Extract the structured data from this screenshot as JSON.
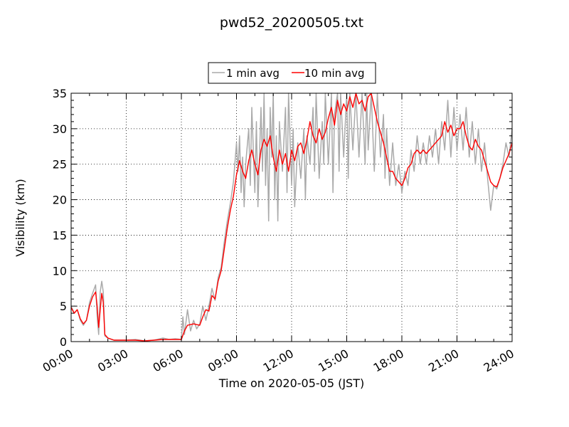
{
  "chart_data": {
    "type": "line",
    "title": "pwd52_20200505.txt",
    "xlabel": "Time on 2020-05-05 (JST)",
    "ylabel": "Visibility (km)",
    "xlim": [
      "00:00",
      "24:00"
    ],
    "ylim": [
      0,
      35
    ],
    "x_ticks": [
      "00:00",
      "03:00",
      "06:00",
      "09:00",
      "12:00",
      "15:00",
      "18:00",
      "21:00",
      "24:00"
    ],
    "y_ticks": [
      "0",
      "5",
      "10",
      "15",
      "20",
      "25",
      "30",
      "35"
    ],
    "grid": true,
    "legend": {
      "placement": "top-center",
      "outside": true
    },
    "series": [
      {
        "name": "1 min avg",
        "color": "#aaaaaa",
        "points": [
          [
            "00:00",
            5.0
          ],
          [
            "00:10",
            4.0
          ],
          [
            "00:20",
            4.5
          ],
          [
            "00:30",
            3.0
          ],
          [
            "00:40",
            2.3
          ],
          [
            "00:50",
            3.0
          ],
          [
            "01:00",
            5.5
          ],
          [
            "01:10",
            6.8
          ],
          [
            "01:20",
            8.0
          ],
          [
            "01:25",
            3.5
          ],
          [
            "01:30",
            1.0
          ],
          [
            "01:35",
            7.0
          ],
          [
            "01:40",
            8.5
          ],
          [
            "01:45",
            7.0
          ],
          [
            "01:50",
            0.8
          ],
          [
            "02:00",
            0.5
          ],
          [
            "02:20",
            0.2
          ],
          [
            "03:00",
            0.2
          ],
          [
            "03:30",
            0.3
          ],
          [
            "04:00",
            0.1
          ],
          [
            "04:30",
            0.2
          ],
          [
            "05:00",
            0.5
          ],
          [
            "05:20",
            0.3
          ],
          [
            "05:40",
            0.4
          ],
          [
            "06:00",
            0.3
          ],
          [
            "06:05",
            3.5
          ],
          [
            "06:10",
            1.0
          ],
          [
            "06:20",
            4.5
          ],
          [
            "06:30",
            1.5
          ],
          [
            "06:40",
            3.0
          ],
          [
            "06:50",
            1.8
          ],
          [
            "07:00",
            2.5
          ],
          [
            "07:10",
            5.0
          ],
          [
            "07:20",
            3.0
          ],
          [
            "07:30",
            5.0
          ],
          [
            "07:40",
            7.5
          ],
          [
            "07:50",
            5.8
          ],
          [
            "08:00",
            9.0
          ],
          [
            "08:10",
            10.5
          ],
          [
            "08:20",
            14.0
          ],
          [
            "08:30",
            17.0
          ],
          [
            "08:40",
            19.5
          ],
          [
            "08:50",
            22.5
          ],
          [
            "09:00",
            28.0
          ],
          [
            "09:05",
            24.0
          ],
          [
            "09:10",
            29.0
          ],
          [
            "09:15",
            21.0
          ],
          [
            "09:20",
            26.0
          ],
          [
            "09:25",
            19.0
          ],
          [
            "09:30",
            25.0
          ],
          [
            "09:40",
            30.0
          ],
          [
            "09:45",
            22.0
          ],
          [
            "09:50",
            33.0
          ],
          [
            "10:00",
            21.0
          ],
          [
            "10:05",
            31.0
          ],
          [
            "10:10",
            19.0
          ],
          [
            "10:20",
            33.0
          ],
          [
            "10:25",
            24.0
          ],
          [
            "10:30",
            35.0
          ],
          [
            "10:35",
            22.0
          ],
          [
            "10:40",
            30.0
          ],
          [
            "10:45",
            17.0
          ],
          [
            "10:50",
            33.0
          ],
          [
            "10:55",
            26.0
          ],
          [
            "11:00",
            35.0
          ],
          [
            "11:05",
            20.0
          ],
          [
            "11:10",
            29.0
          ],
          [
            "11:15",
            17.0
          ],
          [
            "11:20",
            31.0
          ],
          [
            "11:30",
            24.0
          ],
          [
            "11:40",
            33.0
          ],
          [
            "11:45",
            21.0
          ],
          [
            "11:50",
            35.0
          ],
          [
            "12:00",
            22.0
          ],
          [
            "12:05",
            30.0
          ],
          [
            "12:10",
            19.0
          ],
          [
            "12:20",
            28.0
          ],
          [
            "12:30",
            23.0
          ],
          [
            "12:40",
            30.0
          ],
          [
            "12:45",
            20.0
          ],
          [
            "12:50",
            29.0
          ],
          [
            "13:00",
            25.0
          ],
          [
            "13:10",
            33.0
          ],
          [
            "13:15",
            24.0
          ],
          [
            "13:20",
            35.0
          ],
          [
            "13:30",
            23.0
          ],
          [
            "13:40",
            31.0
          ],
          [
            "13:45",
            25.0
          ],
          [
            "13:50",
            35.0
          ],
          [
            "14:00",
            25.0
          ],
          [
            "14:10",
            35.0
          ],
          [
            "14:15",
            21.0
          ],
          [
            "14:20",
            32.0
          ],
          [
            "14:30",
            35.0
          ],
          [
            "14:35",
            24.0
          ],
          [
            "14:40",
            35.0
          ],
          [
            "14:50",
            26.0
          ],
          [
            "15:00",
            35.0
          ],
          [
            "15:05",
            23.0
          ],
          [
            "15:10",
            35.0
          ],
          [
            "15:20",
            27.0
          ],
          [
            "15:30",
            35.0
          ],
          [
            "15:40",
            26.0
          ],
          [
            "15:50",
            35.0
          ],
          [
            "16:00",
            25.0
          ],
          [
            "16:05",
            35.0
          ],
          [
            "16:10",
            27.0
          ],
          [
            "16:20",
            35.0
          ],
          [
            "16:30",
            24.0
          ],
          [
            "16:40",
            35.0
          ],
          [
            "16:50",
            26.0
          ],
          [
            "17:00",
            32.0
          ],
          [
            "17:05",
            23.0
          ],
          [
            "17:10",
            30.0
          ],
          [
            "17:20",
            22.0
          ],
          [
            "17:30",
            28.0
          ],
          [
            "17:40",
            22.0
          ],
          [
            "17:50",
            25.0
          ],
          [
            "18:00",
            21.0
          ],
          [
            "18:10",
            24.0
          ],
          [
            "18:20",
            22.0
          ],
          [
            "18:30",
            27.0
          ],
          [
            "18:40",
            24.0
          ],
          [
            "18:50",
            29.0
          ],
          [
            "19:00",
            25.0
          ],
          [
            "19:10",
            28.0
          ],
          [
            "19:20",
            25.0
          ],
          [
            "19:30",
            29.0
          ],
          [
            "19:40",
            26.0
          ],
          [
            "19:50",
            30.0
          ],
          [
            "20:00",
            25.0
          ],
          [
            "20:10",
            31.0
          ],
          [
            "20:20",
            27.0
          ],
          [
            "20:30",
            34.0
          ],
          [
            "20:40",
            26.0
          ],
          [
            "20:50",
            33.0
          ],
          [
            "21:00",
            27.0
          ],
          [
            "21:10",
            32.0
          ],
          [
            "21:20",
            27.0
          ],
          [
            "21:30",
            33.0
          ],
          [
            "21:40",
            26.0
          ],
          [
            "21:50",
            31.0
          ],
          [
            "22:00",
            25.0
          ],
          [
            "22:10",
            30.0
          ],
          [
            "22:20",
            24.0
          ],
          [
            "22:30",
            28.0
          ],
          [
            "22:40",
            23.0
          ],
          [
            "22:50",
            18.5
          ],
          [
            "23:00",
            22.0
          ],
          [
            "23:10",
            21.5
          ],
          [
            "23:20",
            23.0
          ],
          [
            "23:30",
            25.0
          ],
          [
            "23:40",
            28.0
          ],
          [
            "23:50",
            26.0
          ],
          [
            "24:00",
            30.0
          ]
        ]
      },
      {
        "name": "10 min avg",
        "color": "#ff0000",
        "points": [
          [
            "00:00",
            4.8
          ],
          [
            "00:10",
            4.0
          ],
          [
            "00:20",
            4.5
          ],
          [
            "00:30",
            3.2
          ],
          [
            "00:40",
            2.5
          ],
          [
            "00:50",
            3.0
          ],
          [
            "01:00",
            5.0
          ],
          [
            "01:10",
            6.3
          ],
          [
            "01:20",
            7.0
          ],
          [
            "01:25",
            5.0
          ],
          [
            "01:30",
            2.0
          ],
          [
            "01:35",
            4.5
          ],
          [
            "01:40",
            6.8
          ],
          [
            "01:45",
            5.5
          ],
          [
            "01:50",
            1.0
          ],
          [
            "02:00",
            0.5
          ],
          [
            "02:20",
            0.2
          ],
          [
            "03:00",
            0.2
          ],
          [
            "03:30",
            0.2
          ],
          [
            "04:00",
            0.1
          ],
          [
            "04:30",
            0.2
          ],
          [
            "05:00",
            0.3
          ],
          [
            "05:30",
            0.3
          ],
          [
            "06:00",
            0.3
          ],
          [
            "06:10",
            1.5
          ],
          [
            "06:20",
            2.3
          ],
          [
            "06:40",
            2.5
          ],
          [
            "07:00",
            2.3
          ],
          [
            "07:10",
            3.5
          ],
          [
            "07:20",
            4.5
          ],
          [
            "07:30",
            4.3
          ],
          [
            "07:40",
            6.5
          ],
          [
            "07:50",
            6.0
          ],
          [
            "08:00",
            8.5
          ],
          [
            "08:10",
            10.0
          ],
          [
            "08:20",
            13.0
          ],
          [
            "08:30",
            16.0
          ],
          [
            "08:40",
            18.5
          ],
          [
            "08:50",
            20.5
          ],
          [
            "09:00",
            23.5
          ],
          [
            "09:10",
            25.5
          ],
          [
            "09:20",
            24.0
          ],
          [
            "09:30",
            23.0
          ],
          [
            "09:40",
            25.5
          ],
          [
            "09:50",
            27.0
          ],
          [
            "10:00",
            25.0
          ],
          [
            "10:10",
            23.5
          ],
          [
            "10:20",
            27.0
          ],
          [
            "10:30",
            28.5
          ],
          [
            "10:40",
            27.5
          ],
          [
            "10:50",
            29.0
          ],
          [
            "11:00",
            26.0
          ],
          [
            "11:10",
            24.0
          ],
          [
            "11:20",
            27.0
          ],
          [
            "11:30",
            25.0
          ],
          [
            "11:40",
            26.5
          ],
          [
            "11:50",
            24.0
          ],
          [
            "12:00",
            27.0
          ],
          [
            "12:10",
            25.5
          ],
          [
            "12:20",
            27.5
          ],
          [
            "12:30",
            28.0
          ],
          [
            "12:40",
            26.5
          ],
          [
            "12:50",
            28.5
          ],
          [
            "13:00",
            31.0
          ],
          [
            "13:10",
            29.0
          ],
          [
            "13:20",
            28.0
          ],
          [
            "13:30",
            30.0
          ],
          [
            "13:40",
            28.5
          ],
          [
            "13:50",
            29.5
          ],
          [
            "14:00",
            31.5
          ],
          [
            "14:10",
            33.0
          ],
          [
            "14:20",
            30.5
          ],
          [
            "14:30",
            34.0
          ],
          [
            "14:40",
            32.0
          ],
          [
            "14:50",
            33.5
          ],
          [
            "15:00",
            32.5
          ],
          [
            "15:10",
            34.5
          ],
          [
            "15:20",
            33.0
          ],
          [
            "15:30",
            35.0
          ],
          [
            "15:40",
            33.5
          ],
          [
            "15:50",
            34.0
          ],
          [
            "16:00",
            32.5
          ],
          [
            "16:10",
            34.5
          ],
          [
            "16:20",
            35.0
          ],
          [
            "16:30",
            33.0
          ],
          [
            "16:40",
            31.0
          ],
          [
            "16:50",
            29.5
          ],
          [
            "17:00",
            28.0
          ],
          [
            "17:10",
            26.0
          ],
          [
            "17:20",
            24.0
          ],
          [
            "17:30",
            24.0
          ],
          [
            "17:40",
            23.0
          ],
          [
            "17:50",
            22.5
          ],
          [
            "18:00",
            22.0
          ],
          [
            "18:10",
            23.0
          ],
          [
            "18:20",
            24.5
          ],
          [
            "18:30",
            25.0
          ],
          [
            "18:40",
            26.5
          ],
          [
            "18:50",
            27.0
          ],
          [
            "19:00",
            26.5
          ],
          [
            "19:10",
            27.0
          ],
          [
            "19:20",
            26.5
          ],
          [
            "19:30",
            27.0
          ],
          [
            "19:40",
            27.5
          ],
          [
            "19:50",
            28.0
          ],
          [
            "20:00",
            28.5
          ],
          [
            "20:10",
            29.0
          ],
          [
            "20:20",
            31.0
          ],
          [
            "20:30",
            29.5
          ],
          [
            "20:40",
            30.5
          ],
          [
            "20:50",
            29.0
          ],
          [
            "21:00",
            30.0
          ],
          [
            "21:10",
            30.0
          ],
          [
            "21:20",
            31.0
          ],
          [
            "21:30",
            29.0
          ],
          [
            "21:40",
            27.5
          ],
          [
            "21:50",
            27.0
          ],
          [
            "22:00",
            28.5
          ],
          [
            "22:10",
            27.5
          ],
          [
            "22:20",
            27.0
          ],
          [
            "22:30",
            25.5
          ],
          [
            "22:40",
            24.0
          ],
          [
            "22:50",
            22.5
          ],
          [
            "23:00",
            22.0
          ],
          [
            "23:10",
            21.8
          ],
          [
            "23:20",
            23.0
          ],
          [
            "23:30",
            24.5
          ],
          [
            "23:40",
            25.5
          ],
          [
            "23:50",
            26.5
          ],
          [
            "24:00",
            28.0
          ]
        ]
      }
    ]
  }
}
